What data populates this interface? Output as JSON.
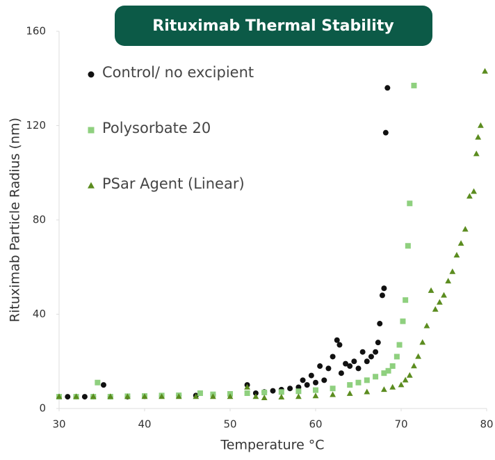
{
  "chart_data": {
    "type": "scatter",
    "title": "Rituximab Thermal Stability",
    "xlabel": "Temperature °C",
    "ylabel": "Rituximab Particle Radius (nm)",
    "xlim": [
      30,
      80
    ],
    "xticks": [
      30,
      40,
      50,
      60,
      70,
      80
    ],
    "ylim": [
      0,
      160
    ],
    "yticks": [
      0,
      40,
      80,
      120,
      160
    ],
    "grid": false,
    "legend": "upper left",
    "series": [
      {
        "name": "Control/ no excipient",
        "color": "#111111",
        "marker": "circle",
        "x": [
          30,
          31,
          32,
          33,
          34,
          35.2,
          36,
          38,
          40,
          42,
          44,
          46,
          48,
          50,
          52,
          53,
          54,
          55,
          56,
          57,
          58,
          58.5,
          59,
          59.5,
          60,
          60.5,
          61,
          61.5,
          62,
          62.5,
          62.8,
          63,
          63.5,
          64,
          64.5,
          65,
          65.5,
          66,
          66.5,
          67,
          67.3,
          67.5,
          67.8,
          68,
          68.2,
          68.4
        ],
        "values": [
          5,
          5,
          5,
          5,
          5,
          10,
          5,
          5,
          5.2,
          5.3,
          5.5,
          5.5,
          5.8,
          6,
          10,
          6.5,
          7,
          7.5,
          8,
          8.5,
          9,
          12,
          10,
          14,
          11,
          18,
          12,
          17,
          22,
          29,
          27,
          15,
          19,
          18,
          20,
          17,
          24,
          20,
          22,
          24,
          28,
          36,
          48,
          51,
          117,
          136
        ]
      },
      {
        "name": "Polysorbate 20",
        "color": "#8fd07f",
        "marker": "square",
        "x": [
          30,
          32,
          34,
          34.5,
          36,
          38,
          40,
          42,
          44,
          46.5,
          48,
          50,
          52,
          54,
          56,
          58,
          60,
          62,
          64,
          65,
          66,
          67,
          68,
          68.5,
          69,
          69.5,
          69.8,
          70.2,
          70.5,
          70.8,
          71,
          71.5
        ],
        "values": [
          5,
          5,
          5,
          11,
          5,
          5.2,
          5.3,
          5.5,
          5.6,
          6.5,
          6,
          6.2,
          6.5,
          6.8,
          7,
          7.3,
          7.8,
          8.5,
          10,
          11,
          12,
          13.5,
          15,
          16,
          18,
          22,
          27,
          37,
          46,
          69,
          87,
          137
        ]
      },
      {
        "name": "PSar Agent (Linear)",
        "color": "#5b8c1f",
        "marker": "triangle",
        "x": [
          30,
          32,
          34,
          36,
          38,
          40,
          42,
          44,
          46,
          48,
          50,
          52,
          53,
          54,
          56,
          58,
          60,
          62,
          64,
          66,
          68,
          69,
          70,
          70.5,
          71,
          71.5,
          72,
          72.5,
          73,
          73.5,
          74,
          74.5,
          75,
          75.5,
          76,
          76.5,
          77,
          77.5,
          78,
          78.5,
          78.8,
          79,
          79.3,
          79.8
        ],
        "values": [
          5,
          5,
          5,
          5,
          5,
          5,
          5,
          5,
          5,
          5,
          5,
          9,
          5,
          4.5,
          4.8,
          5,
          5.3,
          5.8,
          6.3,
          7,
          8,
          9,
          10,
          12,
          14,
          18,
          22,
          28,
          35,
          50,
          42,
          45,
          48,
          54,
          58,
          65,
          70,
          76,
          90,
          92,
          108,
          115,
          120,
          143
        ]
      }
    ]
  }
}
